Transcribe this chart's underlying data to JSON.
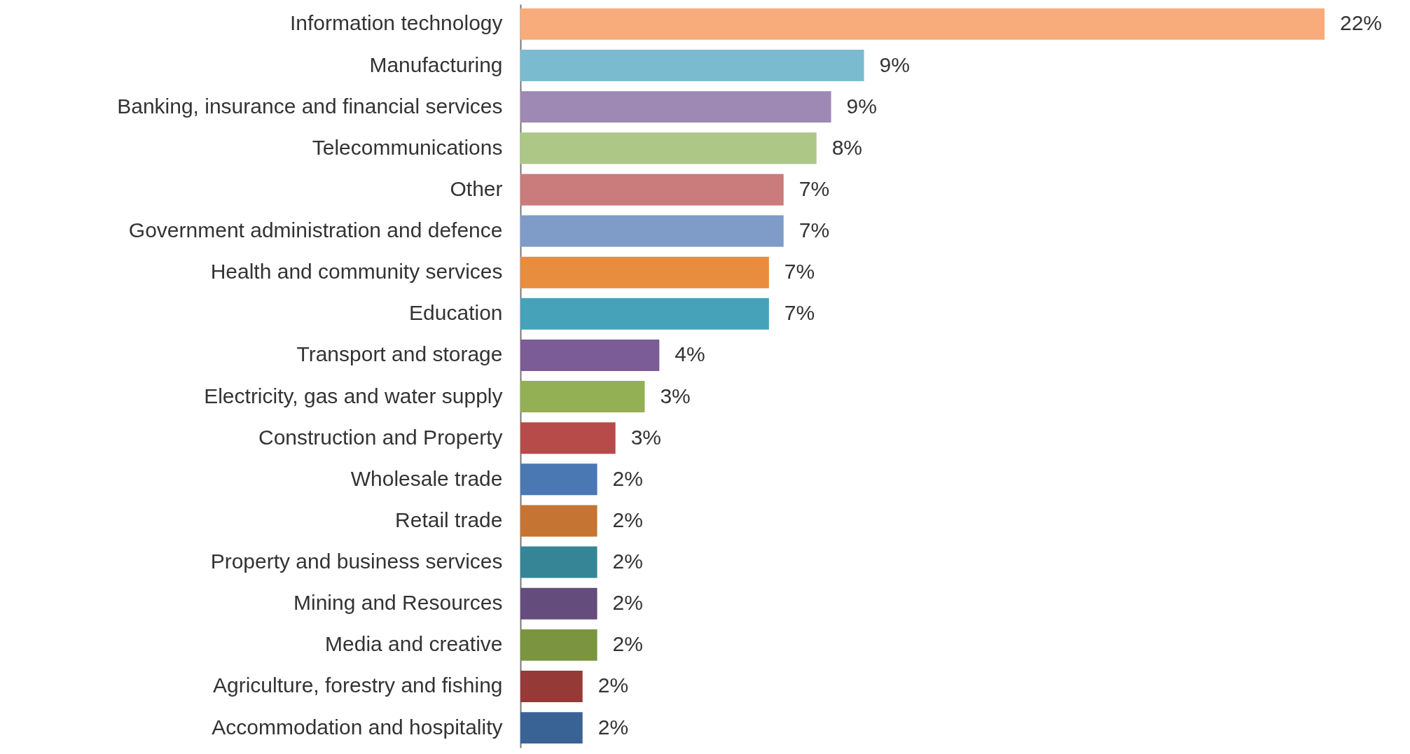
{
  "chart_data": {
    "type": "bar",
    "orientation": "horizontal",
    "categories": [
      "Information technology",
      "Manufacturing",
      "Banking, insurance and financial services",
      "Telecommunications",
      "Other",
      "Government administration and defence",
      "Health and community services",
      "Education",
      "Transport and storage",
      "Electricity, gas and water supply",
      "Construction and Property",
      "Wholesale trade",
      "Retail trade",
      "Property and business services",
      "Mining and Resources",
      "Media and creative",
      "Agriculture, forestry and fishing",
      "Accommodation and hospitality"
    ],
    "values": [
      22,
      9.4,
      8.5,
      8.1,
      7.2,
      7.2,
      6.8,
      6.8,
      3.8,
      3.4,
      2.6,
      2.1,
      2.1,
      2.1,
      2.1,
      2.1,
      1.7,
      1.7
    ],
    "value_labels": [
      "22%",
      "9%",
      "9%",
      "8%",
      "7%",
      "7%",
      "7%",
      "7%",
      "4%",
      "3%",
      "3%",
      "2%",
      "2%",
      "2%",
      "2%",
      "2%",
      "2%",
      "2%"
    ],
    "colors": [
      "#f8ab7b",
      "#7bbbd0",
      "#9d89b3",
      "#adc786",
      "#ca7b7b",
      "#7f9bc8",
      "#e88c3e",
      "#45a2b9",
      "#7b5c96",
      "#93b055",
      "#b64b49",
      "#4a78b2",
      "#c57433",
      "#358597",
      "#644c7d",
      "#7a9440",
      "#963a38",
      "#396394"
    ]
  }
}
